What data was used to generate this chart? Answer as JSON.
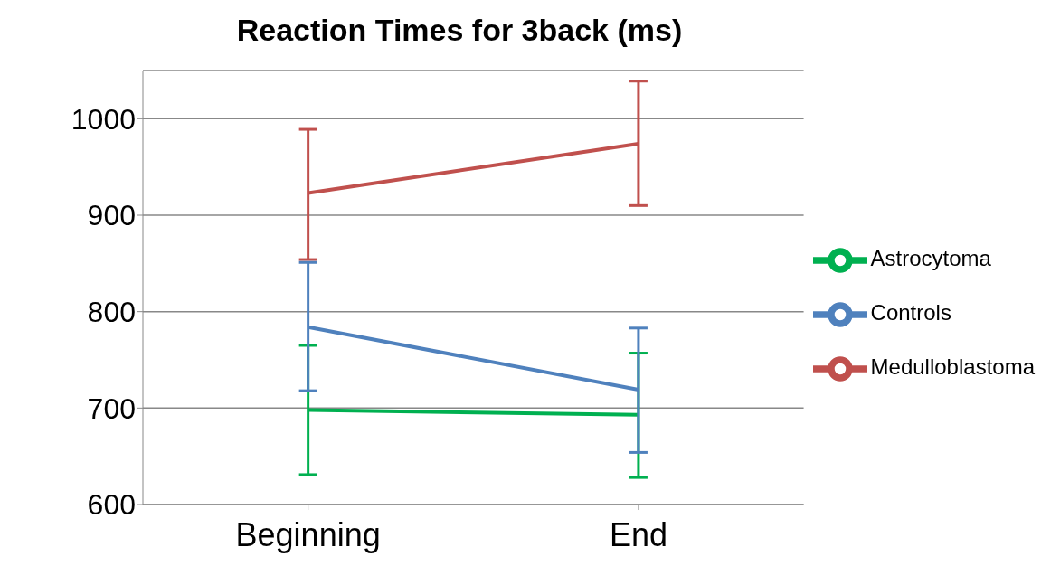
{
  "chart_data": {
    "type": "line",
    "title": "Reaction Times for 3back (ms)",
    "categories": [
      "Beginning",
      "End"
    ],
    "series": [
      {
        "name": "Astrocytoma",
        "color": "#00b050",
        "values": [
          698,
          693
        ],
        "errors": [
          [
            631,
            765
          ],
          [
            628,
            757
          ]
        ]
      },
      {
        "name": "Medulloblastoma",
        "color": "#c0504d",
        "values": [
          923,
          974
        ],
        "errors": [
          [
            854,
            989
          ],
          [
            910,
            1039
          ]
        ]
      },
      {
        "name": "Controls",
        "color": "#4f81bd",
        "values": [
          784,
          719
        ],
        "errors": [
          [
            718,
            851
          ],
          [
            654,
            783
          ]
        ]
      }
    ],
    "ylim": [
      600,
      1050
    ],
    "yticks": [
      600,
      700,
      800,
      900,
      1000
    ],
    "grid": "y",
    "legend": "right",
    "marker": "none"
  }
}
